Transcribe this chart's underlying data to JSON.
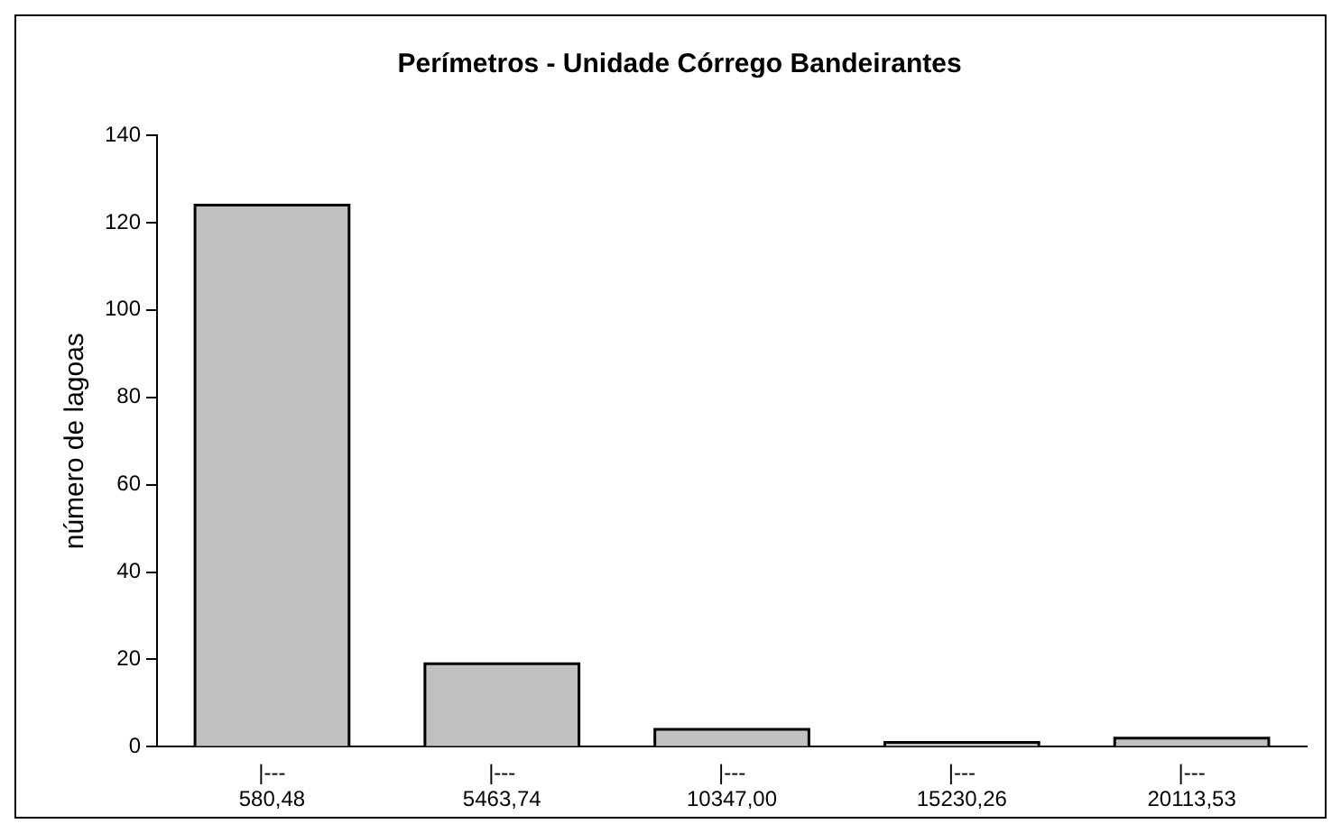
{
  "chart_data": {
    "type": "bar",
    "title": "Perímetros - Unidade Córrego Bandeirantes",
    "ylabel": "número de lagoas",
    "categories": [
      "|---\n580,48",
      "|---\n5463,74",
      "|---\n10347,00",
      "|---\n15230,26",
      "|---\n20113,53"
    ],
    "values": [
      124,
      19,
      4,
      1,
      2
    ],
    "color": "#c0c0c0",
    "ylim": [
      0,
      140
    ],
    "yticks": [
      0,
      20,
      40,
      60,
      80,
      100,
      120,
      140
    ],
    "grid": false,
    "legend": false
  }
}
